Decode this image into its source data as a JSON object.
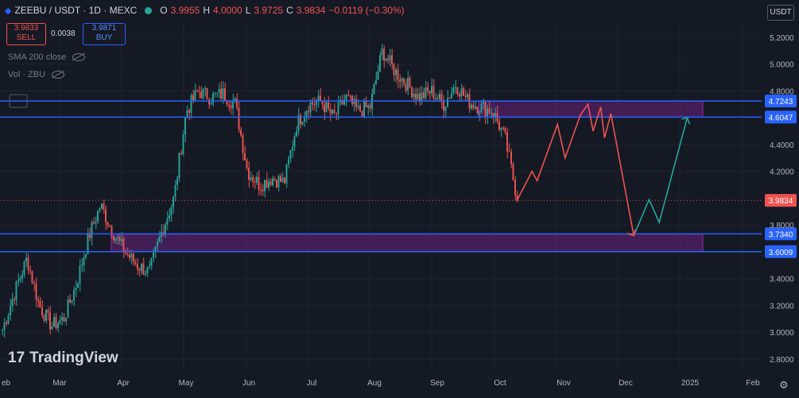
{
  "header": {
    "symbol": "ZEEBU / USDT · 1D · MEXC",
    "o_label": "O",
    "o_value": "3.9955",
    "h_label": "H",
    "h_value": "4.0000",
    "l_label": "L",
    "l_value": "3.9725",
    "c_label": "C",
    "c_value": "3.9834",
    "change": "−0.0119 (−0.30%)"
  },
  "trade": {
    "sell_price": "3.9833",
    "sell_label": "SELL",
    "spread": "0.0038",
    "buy_price": "3.9871",
    "buy_label": "BUY"
  },
  "indicators": {
    "sma": "SMA 200 close",
    "vol": "Vol · ZBU"
  },
  "currency_button": "USDT",
  "logo_text": "TradingView",
  "colors": {
    "bg": "#151924",
    "up": "#26a69a",
    "down": "#ef5350",
    "line": "#2962ff",
    "zone": "#9c27b0"
  },
  "chart_data": {
    "type": "candlestick",
    "ylim": [
      2.8,
      5.3
    ],
    "x_ticks": [
      "eb",
      "Mar",
      "Apr",
      "May",
      "Jun",
      "Jul",
      "Aug",
      "Sep",
      "Oct",
      "Nov",
      "Dec",
      "2025",
      "Feb"
    ],
    "y_ticks": [
      "5.2000",
      "5.0000",
      "4.8000",
      "4.4000",
      "4.2000",
      "3.8000",
      "3.4000",
      "3.2000",
      "3.0000",
      "2.8000"
    ],
    "current_price": "3.9834",
    "levels": [
      {
        "label": "4.7243",
        "value": 4.7243
      },
      {
        "label": "4.6047",
        "value": 4.6047
      },
      {
        "label": "3.7340",
        "value": 3.734
      },
      {
        "label": "3.6009",
        "value": 3.6009
      }
    ],
    "zones": [
      {
        "from": 4.6047,
        "to": 4.7243,
        "start_index": 40
      },
      {
        "from": 3.6009,
        "to": 3.734,
        "start_index": 7
      }
    ],
    "closes": [
      3.02,
      3.3,
      3.55,
      3.2,
      3.05,
      3.1,
      3.35,
      3.7,
      3.95,
      3.75,
      3.6,
      3.5,
      3.45,
      3.75,
      4.0,
      4.65,
      4.8,
      4.75,
      4.78,
      4.7,
      4.2,
      4.1,
      4.15,
      4.12,
      4.55,
      4.7,
      4.72,
      4.6,
      4.75,
      4.65,
      4.68,
      5.1,
      4.95,
      4.85,
      4.75,
      4.8,
      4.7,
      4.85,
      4.72,
      4.68,
      4.65,
      4.45,
      4.0
    ],
    "projection": [
      {
        "x": 0.0,
        "y": 3.98
      },
      {
        "x": 0.6,
        "y": 4.2
      },
      {
        "x": 0.8,
        "y": 4.13
      },
      {
        "x": 1.6,
        "y": 4.55
      },
      {
        "x": 1.9,
        "y": 4.3
      },
      {
        "x": 2.5,
        "y": 4.62
      },
      {
        "x": 2.8,
        "y": 4.7
      },
      {
        "x": 3.0,
        "y": 4.5
      },
      {
        "x": 3.3,
        "y": 4.68
      },
      {
        "x": 3.45,
        "y": 4.45
      },
      {
        "x": 3.7,
        "y": 4.63
      },
      {
        "x": 4.6,
        "y": 3.72
      },
      {
        "x": 5.2,
        "y": 3.99
      },
      {
        "x": 5.6,
        "y": 3.82
      },
      {
        "x": 6.7,
        "y": 4.6
      }
    ]
  }
}
